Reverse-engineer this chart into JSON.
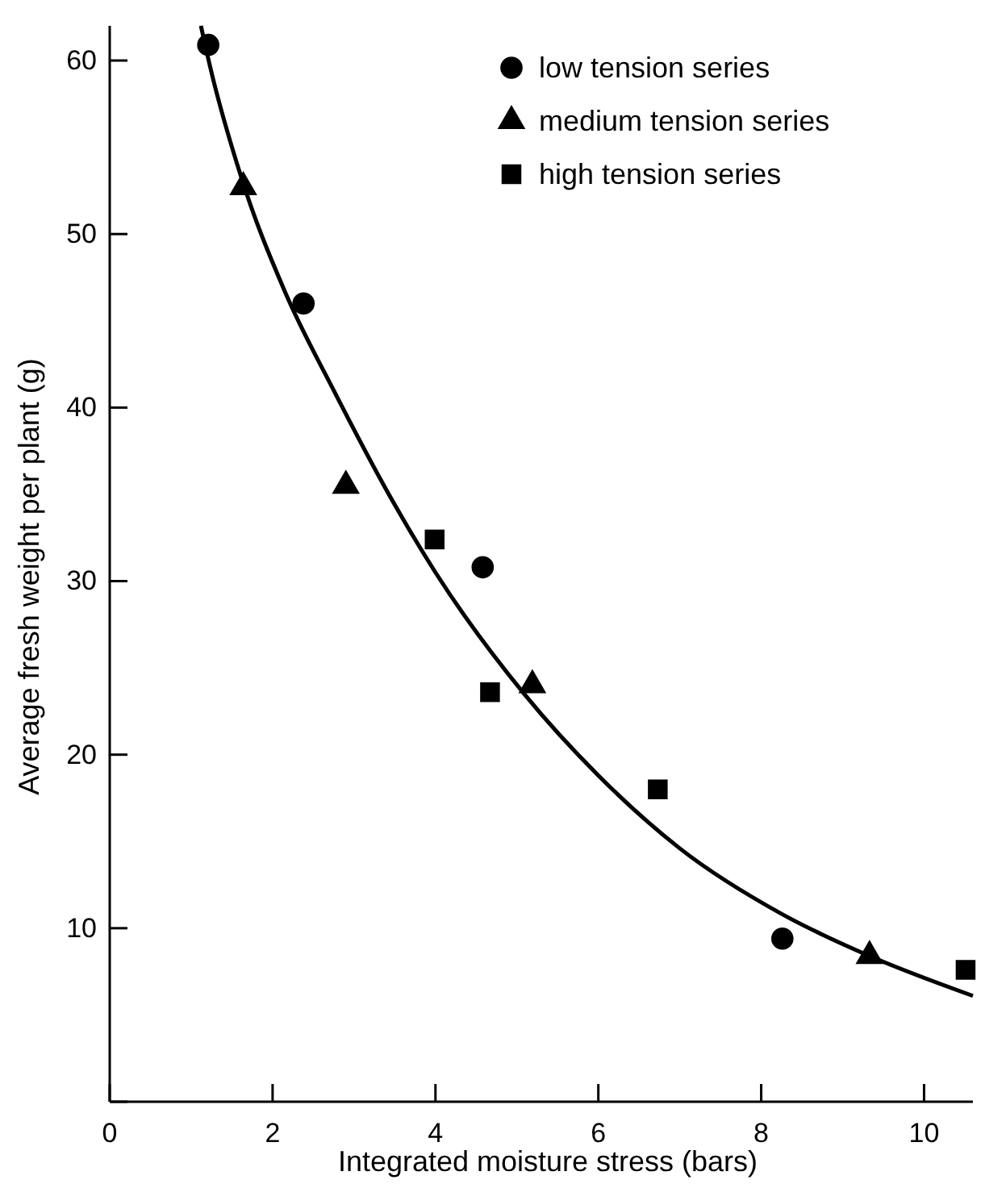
{
  "chart_data": {
    "type": "scatter",
    "xlabel": "Integrated moisture stress (bars)",
    "ylabel": "Average fresh weight per plant (g)",
    "xlim": [
      0,
      10.6
    ],
    "ylim": [
      0,
      62
    ],
    "xticks": [
      0,
      2,
      4,
      6,
      8,
      10
    ],
    "yticks": [
      {
        "value": 0,
        "label": null
      },
      10,
      20,
      30,
      40,
      50,
      60
    ],
    "legend": "top right",
    "grid": false,
    "series": [
      {
        "name": "low tension series",
        "color": "#000000",
        "marker": "circle",
        "x": [
          1.21,
          2.38,
          4.58,
          8.26
        ],
        "values": [
          60.9,
          46.0,
          30.8,
          9.4
        ]
      },
      {
        "name": "medium tension series",
        "color": "#000000",
        "marker": "triangle",
        "x": [
          1.64,
          2.9,
          5.19,
          9.33
        ],
        "values": [
          52.7,
          35.5,
          24.0,
          8.4
        ]
      },
      {
        "name": "high tension series",
        "color": "#000000",
        "marker": "square",
        "x": [
          3.99,
          4.67,
          6.73,
          10.51
        ],
        "values": [
          32.4,
          23.6,
          18.0,
          7.6
        ]
      },
      {
        "type": "line",
        "color": "#000000",
        "marker": "none",
        "line_style": "solid",
        "x": [
          1.12,
          1.23,
          1.62,
          2.15,
          2.75,
          3.5,
          4.0,
          5.09,
          6.0,
          7.0,
          8.26,
          9.33,
          10.6
        ],
        "values": [
          62,
          59.7,
          53.2,
          46.7,
          41.0,
          34.4,
          30.5,
          23.5,
          18.8,
          14.6,
          10.8,
          8.4,
          6.1
        ]
      }
    ]
  }
}
